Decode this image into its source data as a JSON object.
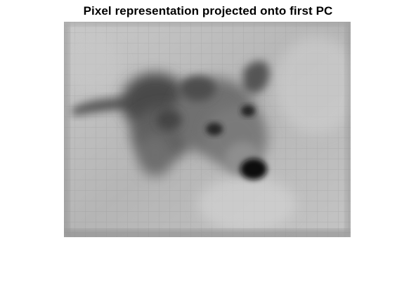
{
  "figure": {
    "title": "Pixel representation projected onto first PC"
  },
  "image": {
    "subject": "dog",
    "colormap": "grayscale"
  }
}
